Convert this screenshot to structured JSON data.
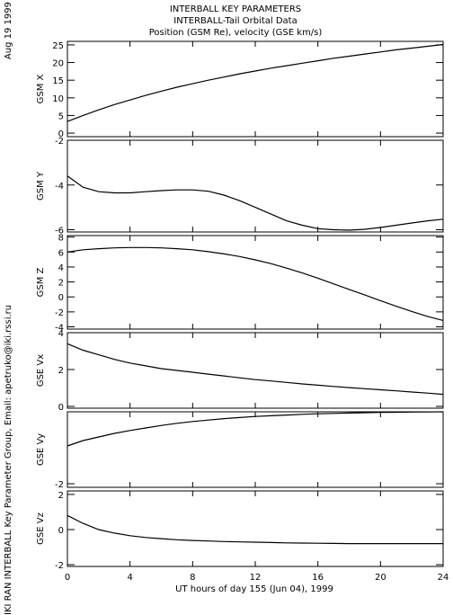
{
  "figure": {
    "title_lines": [
      "INTERBALL KEY PARAMETERS",
      "INTERBALL-Tail Orbital Data",
      "Position (GSM Re), velocity (GSE km/s)"
    ],
    "date_stamp": "Aug 19 1999",
    "credit": "IKI RAN INTERBALL Key Parameter Group, Email: apetruko@iki.rssi.ru"
  },
  "chart_data": [
    {
      "type": "line",
      "ylabel": "GSM X",
      "ylim": [
        -1,
        26
      ],
      "yticks": [
        0,
        5,
        10,
        15,
        20,
        25
      ],
      "ytick_labels": [
        "0",
        "5",
        "10",
        "15",
        "20",
        "25"
      ],
      "x": [
        0,
        1,
        2,
        3,
        4,
        5,
        6,
        7,
        8,
        9,
        10,
        11,
        12,
        13,
        14,
        15,
        16,
        17,
        18,
        19,
        20,
        21,
        22,
        23,
        24
      ],
      "y": [
        3.3,
        5.0,
        6.6,
        8.1,
        9.4,
        10.7,
        11.9,
        13.0,
        14.0,
        15.0,
        15.9,
        16.8,
        17.6,
        18.4,
        19.1,
        19.8,
        20.5,
        21.2,
        21.8,
        22.4,
        23.0,
        23.6,
        24.1,
        24.6,
        25.1
      ]
    },
    {
      "type": "line",
      "ylabel": "GSM Y",
      "ylim": [
        -6.1,
        -2
      ],
      "yticks": [
        -6,
        -4,
        -2
      ],
      "ytick_labels": [
        "-6",
        "-4",
        "-2"
      ],
      "x": [
        0,
        1,
        2,
        3,
        4,
        5,
        6,
        7,
        8,
        9,
        10,
        11,
        12,
        13,
        14,
        15,
        16,
        17,
        18,
        19,
        20,
        21,
        22,
        23,
        24
      ],
      "y": [
        -3.6,
        -4.1,
        -4.3,
        -4.35,
        -4.35,
        -4.3,
        -4.25,
        -4.22,
        -4.22,
        -4.28,
        -4.45,
        -4.7,
        -5.0,
        -5.3,
        -5.6,
        -5.8,
        -5.95,
        -6.0,
        -6.02,
        -5.98,
        -5.9,
        -5.8,
        -5.7,
        -5.6,
        -5.53
      ]
    },
    {
      "type": "line",
      "ylabel": "GSM Z",
      "ylim": [
        -4.3,
        8.2
      ],
      "yticks": [
        -4,
        -2,
        0,
        2,
        4,
        6,
        8
      ],
      "ytick_labels": [
        "-4",
        "-2",
        "0",
        "2",
        "4",
        "6",
        "8"
      ],
      "x": [
        0,
        1,
        2,
        3,
        4,
        5,
        6,
        7,
        8,
        9,
        10,
        11,
        12,
        13,
        14,
        15,
        16,
        17,
        18,
        19,
        20,
        21,
        22,
        23,
        24
      ],
      "y": [
        6.0,
        6.3,
        6.45,
        6.55,
        6.6,
        6.6,
        6.55,
        6.45,
        6.3,
        6.05,
        5.75,
        5.4,
        4.95,
        4.45,
        3.85,
        3.2,
        2.5,
        1.75,
        1.0,
        0.25,
        -0.5,
        -1.25,
        -1.95,
        -2.6,
        -3.15
      ]
    },
    {
      "type": "line",
      "ylabel": "GSE Vx",
      "ylim": [
        -0.1,
        4
      ],
      "yticks": [
        0,
        2,
        4
      ],
      "ytick_labels": [
        "0",
        "2",
        "4"
      ],
      "x": [
        0,
        1,
        2,
        3,
        4,
        5,
        6,
        7,
        8,
        9,
        10,
        11,
        12,
        13,
        14,
        15,
        16,
        17,
        18,
        19,
        20,
        21,
        22,
        23,
        24
      ],
      "y": [
        3.4,
        3.05,
        2.8,
        2.55,
        2.35,
        2.2,
        2.05,
        1.95,
        1.85,
        1.75,
        1.65,
        1.55,
        1.45,
        1.38,
        1.3,
        1.22,
        1.15,
        1.08,
        1.02,
        0.96,
        0.9,
        0.84,
        0.78,
        0.72,
        0.65
      ]
    },
    {
      "type": "line",
      "ylabel": "GSE Vy",
      "ylim": [
        -2.1,
        0
      ],
      "yticks": [
        -2
      ],
      "ytick_labels": [
        "-2"
      ],
      "x": [
        0,
        1,
        2,
        3,
        4,
        5,
        6,
        7,
        8,
        9,
        10,
        11,
        12,
        13,
        14,
        15,
        16,
        17,
        18,
        19,
        20,
        21,
        22,
        23,
        24
      ],
      "y": [
        -0.95,
        -0.8,
        -0.7,
        -0.6,
        -0.52,
        -0.45,
        -0.38,
        -0.32,
        -0.27,
        -0.23,
        -0.19,
        -0.16,
        -0.13,
        -0.11,
        -0.09,
        -0.07,
        -0.055,
        -0.045,
        -0.035,
        -0.025,
        -0.018,
        -0.012,
        -0.008,
        -0.004,
        0.0
      ]
    },
    {
      "type": "line",
      "ylabel": "GSE Vz",
      "ylim": [
        -2.1,
        2.2
      ],
      "yticks": [
        -2,
        0,
        2
      ],
      "ytick_labels": [
        "-2",
        "0",
        "2"
      ],
      "x": [
        0,
        1,
        2,
        3,
        4,
        5,
        6,
        7,
        8,
        9,
        10,
        11,
        12,
        13,
        14,
        15,
        16,
        17,
        18,
        19,
        20,
        21,
        22,
        23,
        24
      ],
      "y": [
        0.8,
        0.35,
        0.0,
        -0.2,
        -0.35,
        -0.45,
        -0.52,
        -0.58,
        -0.62,
        -0.65,
        -0.68,
        -0.7,
        -0.72,
        -0.74,
        -0.76,
        -0.77,
        -0.78,
        -0.79,
        -0.8,
        -0.8,
        -0.8,
        -0.8,
        -0.8,
        -0.8,
        -0.8
      ]
    }
  ],
  "x_axis": {
    "label": "UT hours of day 155 (Jun 04), 1999",
    "xlim": [
      0,
      24
    ],
    "ticks": [
      0,
      4,
      8,
      12,
      16,
      20,
      24
    ],
    "tick_labels": [
      "0",
      "4",
      "8",
      "12",
      "16",
      "20",
      "24"
    ]
  }
}
